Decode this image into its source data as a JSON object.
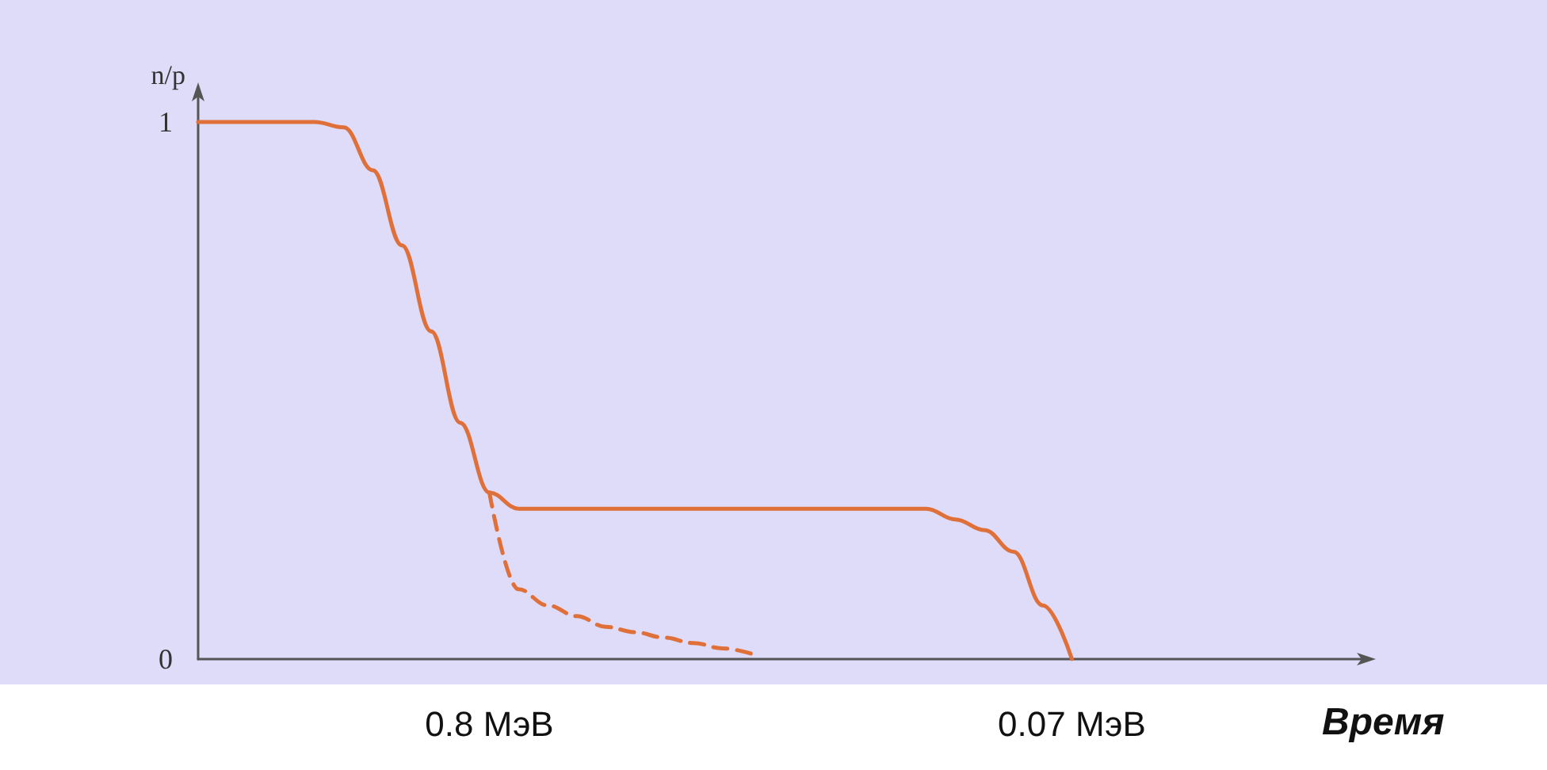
{
  "chart_data": {
    "type": "line",
    "ylabel": "n/p",
    "xlabel": "Время",
    "categories": [
      null,
      null,
      null,
      null,
      null,
      null,
      null,
      null,
      null,
      null,
      "0.8 МэВ",
      null,
      null,
      null,
      null,
      null,
      null,
      null,
      null,
      null,
      null,
      null,
      null,
      null,
      null,
      null,
      null,
      null,
      null,
      null,
      "0.07 МэВ",
      null,
      null,
      null,
      null,
      null,
      null,
      null,
      null,
      null,
      null
    ],
    "series": [
      {
        "color": "#e0703a",
        "line_style": "solid",
        "values": [
          1,
          1,
          1,
          1,
          1,
          0.99,
          0.91,
          0.77,
          0.61,
          0.44,
          0.31,
          0.28,
          0.28,
          0.28,
          0.28,
          0.28,
          0.28,
          0.28,
          0.28,
          0.28,
          0.28,
          0.28,
          0.28,
          0.28,
          0.28,
          0.28,
          0.26,
          0.24,
          0.2,
          0.1,
          0,
          null,
          null,
          null,
          null,
          null,
          null,
          null,
          null,
          null,
          null
        ]
      },
      {
        "color": "#e0703a",
        "line_style": "dashed",
        "values": [
          null,
          null,
          null,
          null,
          null,
          null,
          null,
          null,
          null,
          null,
          0.31,
          0.13,
          0.1,
          0.08,
          0.06,
          0.05,
          0.04,
          0.03,
          0.02,
          0.01,
          null,
          null,
          null,
          null,
          null,
          null,
          null,
          null,
          null,
          null,
          null,
          null,
          null,
          null,
          null,
          null,
          null,
          null,
          null,
          null,
          null
        ]
      }
    ],
    "ylim": [
      0,
      1.05
    ],
    "yticks": [
      0,
      1
    ],
    "grid": false,
    "marker": "none"
  }
}
